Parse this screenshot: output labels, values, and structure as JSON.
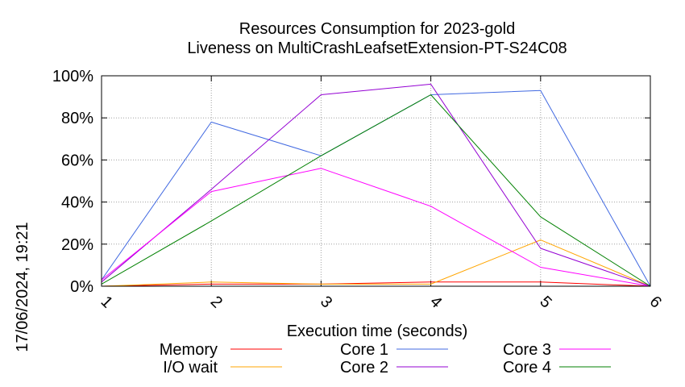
{
  "chart_data": {
    "type": "line",
    "title": "Resources Consumption for 2023-gold",
    "subtitle": "Liveness on MultiCrashLeafsetExtension-PT-S24C08",
    "xlabel": "Execution time (seconds)",
    "ylabel": "",
    "x": [
      1,
      2,
      3,
      4,
      5,
      6
    ],
    "xlim": [
      1,
      6
    ],
    "ylim": [
      0,
      100
    ],
    "x_ticks": [
      "1",
      "2",
      "3",
      "4",
      "5",
      "6"
    ],
    "y_ticks": [
      {
        "value": 0,
        "label": "0%"
      },
      {
        "value": 20,
        "label": "20%"
      },
      {
        "value": 40,
        "label": "40%"
      },
      {
        "value": 60,
        "label": "60%"
      },
      {
        "value": 80,
        "label": "80%"
      },
      {
        "value": 100,
        "label": "100%"
      }
    ],
    "grid": true,
    "legend_position": "bottom",
    "series": [
      {
        "name": "Memory",
        "color": "#ff0000",
        "values": [
          0,
          1,
          1,
          2,
          2,
          0
        ]
      },
      {
        "name": "I/O wait",
        "color": "#ffa500",
        "values": [
          0,
          2,
          1,
          1,
          22,
          0
        ]
      },
      {
        "name": "Core 1",
        "color": "#4169e1",
        "values": [
          3,
          78,
          62,
          91,
          93,
          0
        ]
      },
      {
        "name": "Core 2",
        "color": "#9400d3",
        "values": [
          2,
          46,
          91,
          96,
          18,
          0
        ]
      },
      {
        "name": "Core 3",
        "color": "#ff00ff",
        "values": [
          3,
          45,
          56,
          38,
          9,
          0
        ]
      },
      {
        "name": "Core 4",
        "color": "#008000",
        "values": [
          1,
          31,
          62,
          91,
          33,
          0
        ]
      }
    ]
  },
  "timestamp": "17/06/2024, 19:21"
}
